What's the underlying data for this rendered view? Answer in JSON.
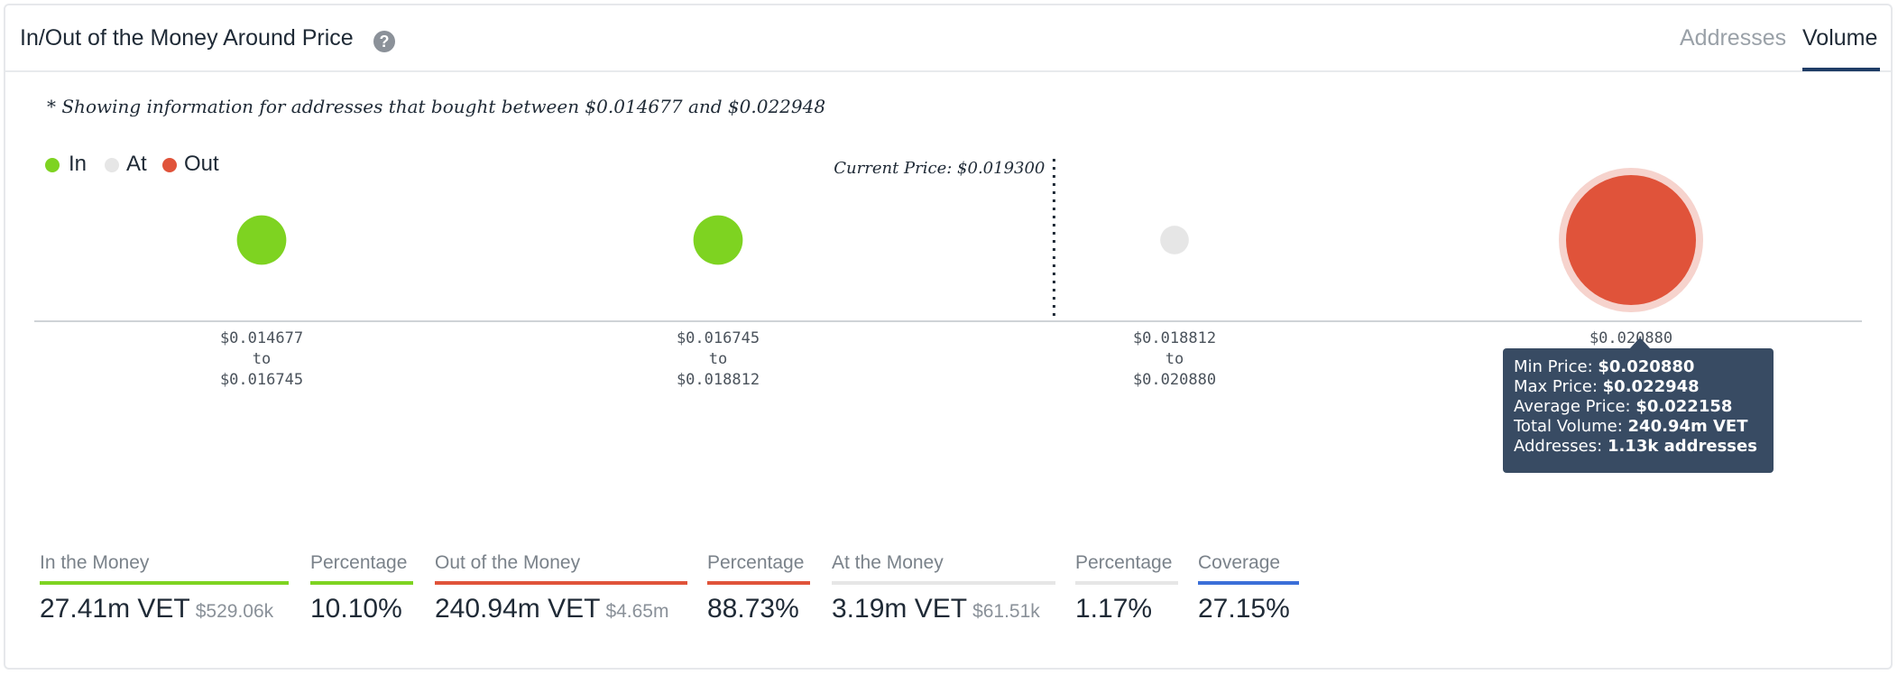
{
  "header": {
    "title": "In/Out of the Money Around Price",
    "tabs": [
      {
        "label": "Addresses",
        "active": false
      },
      {
        "label": "Volume",
        "active": true
      }
    ]
  },
  "note": "* Showing information for addresses that bought between $0.014677 and $0.022948",
  "legend": [
    {
      "label": "In",
      "color": "#7ed321"
    },
    {
      "label": "At",
      "color": "#e6e6e6"
    },
    {
      "label": "Out",
      "color": "#e0533a"
    }
  ],
  "current_price_label": "Current Price: $0.019300",
  "chart_data": {
    "type": "scatter",
    "categories": [
      {
        "from": "$0.014677",
        "to": "$0.016745",
        "status": "In"
      },
      {
        "from": "$0.016745",
        "to": "$0.018812",
        "status": "In"
      },
      {
        "from": "$0.018812",
        "to": "$0.020880",
        "status": "At"
      },
      {
        "from": "$0.020880",
        "to": "$0.022948",
        "status": "Out"
      }
    ],
    "range_connector": "to",
    "relative_bubble_size": [
      0.38,
      0.38,
      0.22,
      1.0
    ],
    "current_price": 0.0193,
    "colors": {
      "In": "#7ed321",
      "At": "#e6e6e6",
      "Out": "#e0533a"
    }
  },
  "tooltip": {
    "rows": [
      {
        "label": "Min Price:",
        "value": "$0.020880"
      },
      {
        "label": "Max Price:",
        "value": "$0.022948"
      },
      {
        "label": "Average Price:",
        "value": "$0.022158"
      },
      {
        "label": "Total Volume:",
        "value": "240.94m VET"
      },
      {
        "label": "Addresses:",
        "value": "1.13k addresses"
      }
    ]
  },
  "stats": [
    {
      "label": "In the Money",
      "value": "27.41m VET",
      "sub": "$529.06k",
      "color": "#7ed321"
    },
    {
      "label": "Percentage",
      "value": "10.10%",
      "sub": "",
      "color": "#7ed321"
    },
    {
      "label": "Out of the Money",
      "value": "240.94m VET",
      "sub": "$4.65m",
      "color": "#e0533a"
    },
    {
      "label": "Percentage",
      "value": "88.73%",
      "sub": "",
      "color": "#e0533a"
    },
    {
      "label": "At the Money",
      "value": "3.19m VET",
      "sub": "$61.51k",
      "color": "#e6e6e6"
    },
    {
      "label": "Percentage",
      "value": "1.17%",
      "sub": "",
      "color": "#e6e6e6"
    },
    {
      "label": "Coverage",
      "value": "27.15%",
      "sub": "",
      "color": "#3b6fd8"
    }
  ]
}
